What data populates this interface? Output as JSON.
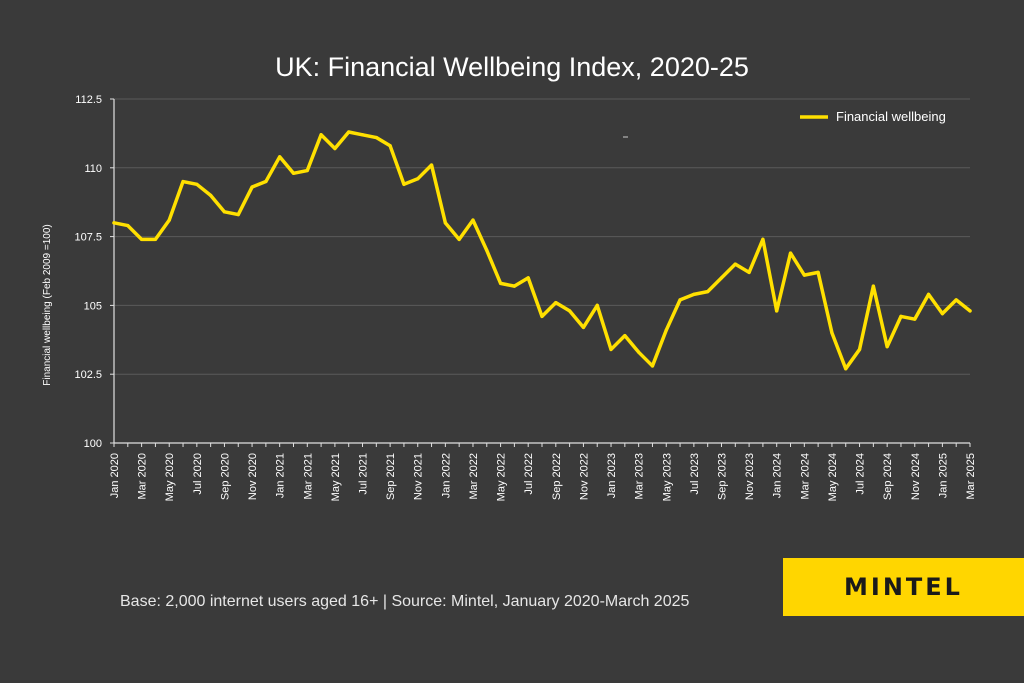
{
  "chart_data": {
    "type": "line",
    "title": "UK: Financial Wellbeing Index, 2020-25",
    "ylabel": "Financial wellbeing (Feb 2009 =100)",
    "xlabel": "",
    "ylim": [
      100,
      112.5
    ],
    "yticks": [
      100,
      102.5,
      105,
      107.5,
      110,
      112.5
    ],
    "ytick_labels": [
      "100",
      "102.5",
      "105",
      "107.5",
      "110",
      "112.5"
    ],
    "grid": "horizontal",
    "legend_position": "top-right",
    "x_months": [
      "Jan 2020",
      "Feb 2020",
      "Mar 2020",
      "Apr 2020",
      "May 2020",
      "Jun 2020",
      "Jul 2020",
      "Aug 2020",
      "Sep 2020",
      "Oct 2020",
      "Nov 2020",
      "Dec 2020",
      "Jan 2021",
      "Feb 2021",
      "Mar 2021",
      "Apr 2021",
      "May 2021",
      "Jun 2021",
      "Jul 2021",
      "Aug 2021",
      "Sep 2021",
      "Oct 2021",
      "Nov 2021",
      "Dec 2021",
      "Jan 2022",
      "Feb 2022",
      "Mar 2022",
      "Apr 2022",
      "May 2022",
      "Jun 2022",
      "Jul 2022",
      "Aug 2022",
      "Sep 2022",
      "Oct 2022",
      "Nov 2022",
      "Dec 2022",
      "Jan 2023",
      "Feb 2023",
      "Mar 2023",
      "Apr 2023",
      "May 2023",
      "Jun 2023",
      "Jul 2023",
      "Aug 2023",
      "Sep 2023",
      "Oct 2023",
      "Nov 2023",
      "Dec 2023",
      "Jan 2024",
      "Feb 2024",
      "Mar 2024",
      "Apr 2024",
      "May 2024",
      "Jun 2024",
      "Jul 2024",
      "Aug 2024",
      "Sep 2024",
      "Oct 2024",
      "Nov 2024",
      "Dec 2024",
      "Jan 2025",
      "Feb 2025",
      "Mar 2025"
    ],
    "x_tick_labels": [
      "Jan 2020",
      "Mar 2020",
      "May 2020",
      "Jul 2020",
      "Sep 2020",
      "Nov 2020",
      "Jan 2021",
      "Mar 2021",
      "May 2021",
      "Jul 2021",
      "Sep 2021",
      "Nov 2021",
      "Jan 2022",
      "Mar 2022",
      "May 2022",
      "Jul 2022",
      "Sep 2022",
      "Nov 2022",
      "Jan 2023",
      "Mar 2023",
      "May 2023",
      "Jul 2023",
      "Sep 2023",
      "Nov 2023",
      "Jan 2024",
      "Mar 2024",
      "May 2024",
      "Jul 2024",
      "Sep 2024",
      "Nov 2024",
      "Jan 2025",
      "Mar 2025"
    ],
    "series": [
      {
        "name": "Financial wellbeing",
        "color": "#ffe000",
        "values": [
          108.0,
          107.9,
          107.4,
          107.4,
          108.1,
          109.5,
          109.4,
          109.0,
          108.4,
          108.3,
          109.3,
          109.5,
          110.4,
          109.8,
          109.9,
          111.2,
          110.7,
          111.3,
          111.2,
          111.1,
          110.8,
          109.4,
          109.6,
          110.1,
          108.0,
          107.4,
          108.1,
          107.0,
          105.8,
          105.7,
          106.0,
          104.6,
          105.1,
          104.8,
          104.2,
          105.0,
          103.4,
          103.9,
          103.3,
          102.8,
          104.1,
          105.2,
          105.4,
          105.5,
          106.0,
          106.5,
          106.2,
          107.4,
          104.8,
          106.9,
          106.1,
          106.2,
          104.0,
          102.7,
          103.4,
          105.7,
          103.5,
          104.6,
          104.5,
          105.4,
          104.7,
          105.2,
          104.8
        ]
      }
    ]
  },
  "footer": {
    "note": "Base: 2,000 internet users aged 16+  | Source: Mintel, January 2020-March 2025"
  },
  "brand": {
    "name": "MINTEL",
    "box_color": "#ffd600"
  },
  "colors": {
    "background": "#3a3a3a",
    "axis": "#e0e0e0",
    "grid": "#5a5a5a",
    "text": "#ffffff"
  }
}
